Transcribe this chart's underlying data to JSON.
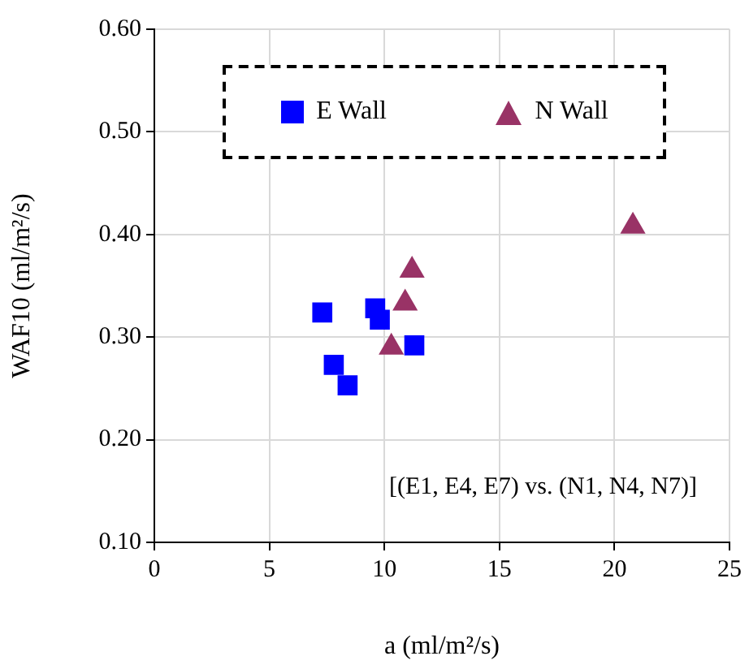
{
  "chart_data": {
    "type": "scatter",
    "xlabel": "a (ml/m²/s)",
    "ylabel": "WAF10 (ml/m²/s)",
    "xlim": [
      0,
      25
    ],
    "xticks": [
      0,
      5,
      10,
      15,
      20,
      25
    ],
    "ylim": [
      0.1,
      0.6
    ],
    "yticks": [
      {
        "value": 0.1,
        "label": "0.10"
      },
      {
        "value": 0.2,
        "label": "0.20"
      },
      {
        "value": 0.3,
        "label": "0.30"
      },
      {
        "value": 0.4,
        "label": "0.40"
      },
      {
        "value": 0.5,
        "label": "0.50"
      },
      {
        "value": 0.6,
        "label": "0.60"
      }
    ],
    "grid": true,
    "legend": "top",
    "annotations": [
      "[(E1, E4, E7) vs. (N1, N4, N7)]"
    ],
    "series": [
      {
        "name": "E Wall",
        "color": "#0000ff",
        "marker": "square",
        "x": [
          7.3,
          9.6,
          9.8,
          11.3,
          7.8,
          8.4
        ],
        "values": [
          0.324,
          0.328,
          0.317,
          0.292,
          0.273,
          0.253
        ]
      },
      {
        "name": "N Wall",
        "color": "#993366",
        "marker": "triangle",
        "x": [
          11.2,
          10.9,
          10.3,
          20.8
        ],
        "values": [
          0.365,
          0.333,
          0.29,
          0.408
        ]
      }
    ]
  }
}
